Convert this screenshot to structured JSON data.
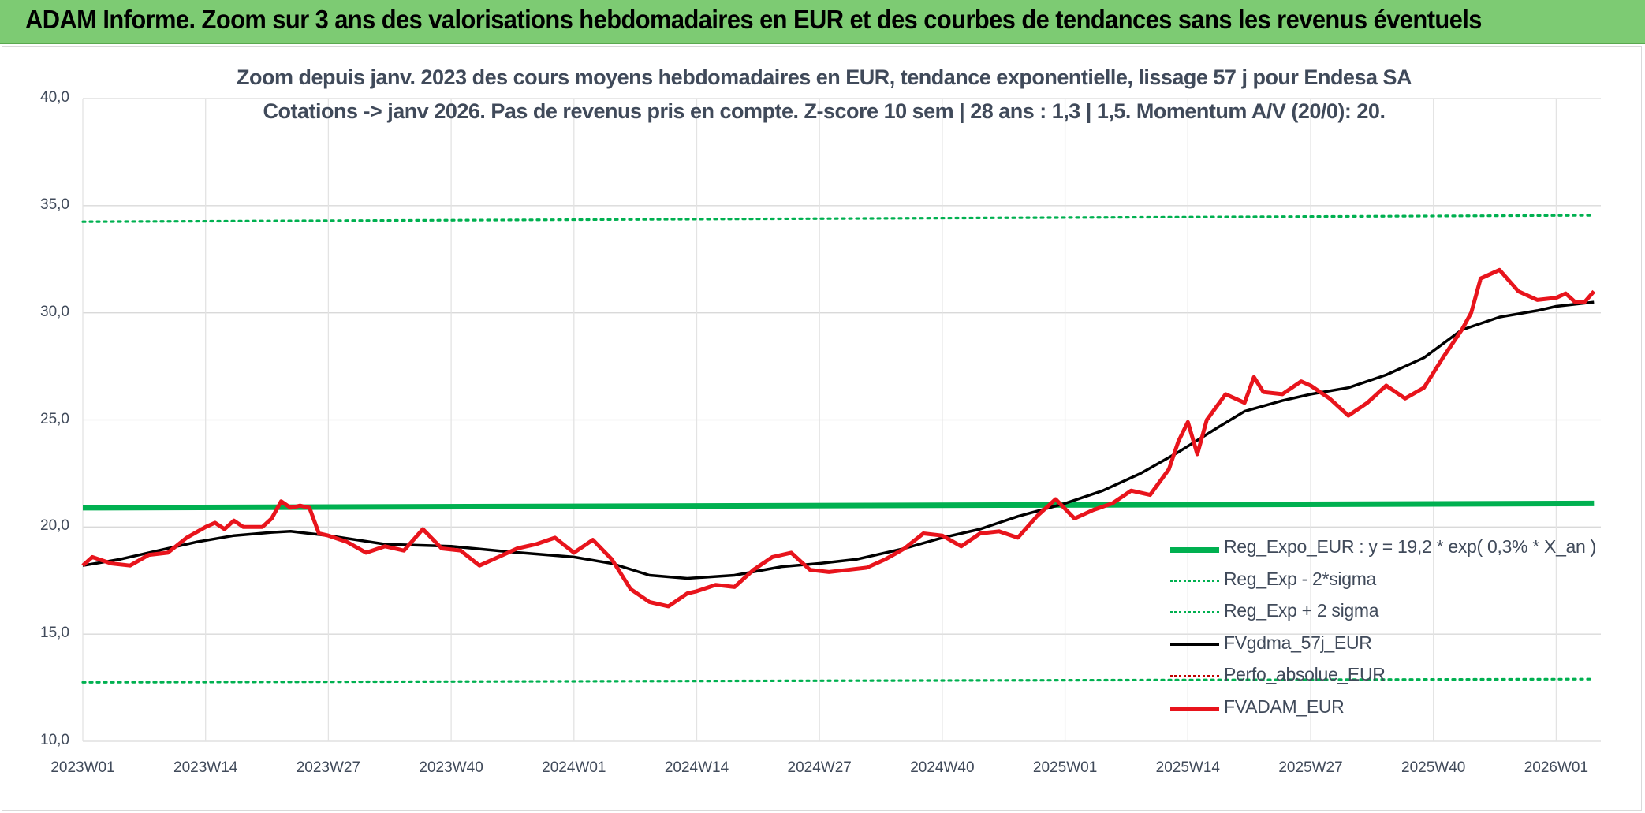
{
  "banner": {
    "title": "ADAM Informe. Zoom sur 3 ans des valorisations hebdomadaires en EUR et des courbes de tendances sans les revenus éventuels"
  },
  "chart_data": {
    "type": "line",
    "title": "Zoom depuis janv. 2023 des cours moyens hebdomadaires en EUR, tendance exponentielle, lissage 57 j pour Endesa SA",
    "subtitle": "Cotations -> janv 2026. Pas de revenus pris en compte. Z-score 10 sem | 28 ans : 1,3 | 1,5. Momentum A/V (20/0): 20.",
    "ylim": [
      10,
      40
    ],
    "yticks": [
      "10,0",
      "15,0",
      "20,0",
      "25,0",
      "30,0",
      "35,0",
      "40,0"
    ],
    "x_tick_labels": [
      "2023W01",
      "2023W14",
      "2023W27",
      "2023W40",
      "2024W01",
      "2024W14",
      "2024W27",
      "2024W40",
      "2025W01",
      "2025W14",
      "2025W27",
      "2025W40",
      "2026W01"
    ],
    "grid": true,
    "legend_position": "bottom-right",
    "series": [
      {
        "name": "Reg_Expo_EUR : y = 19,2 * exp( 0,3% *  X_an )",
        "color": "#00b050",
        "style": "solid-thick",
        "x": [
          "2023W01",
          "2026W05"
        ],
        "values": [
          20.9,
          21.1
        ]
      },
      {
        "name": "Reg_Exp - 2*sigma",
        "color": "#00b050",
        "style": "dotted",
        "x": [
          "2023W01",
          "2026W05"
        ],
        "values": [
          12.75,
          12.9
        ]
      },
      {
        "name": "Reg_Exp + 2 sigma",
        "color": "#00b050",
        "style": "dotted",
        "x": [
          "2023W01",
          "2026W05"
        ],
        "values": [
          34.25,
          34.55
        ]
      },
      {
        "name": "FVgdma_57j_EUR",
        "color": "#000000",
        "style": "solid",
        "x": [
          "2023W01",
          "2023W05",
          "2023W09",
          "2023W13",
          "2023W17",
          "2023W21",
          "2023W23",
          "2023W27",
          "2023W33",
          "2023W40",
          "2023W46",
          "2024W01",
          "2024W05",
          "2024W09",
          "2024W13",
          "2024W18",
          "2024W23",
          "2024W27",
          "2024W31",
          "2024W36",
          "2024W40",
          "2024W44",
          "2024W48",
          "2025W01",
          "2025W05",
          "2025W09",
          "2025W13",
          "2025W17",
          "2025W20",
          "2025W24",
          "2025W27",
          "2025W31",
          "2025W35",
          "2025W39",
          "2025W43",
          "2025W47",
          "2025W51",
          "2026W01",
          "2026W05"
        ],
        "values": [
          18.2,
          18.5,
          18.9,
          19.3,
          19.6,
          19.75,
          19.8,
          19.6,
          19.2,
          19.1,
          18.85,
          18.6,
          18.3,
          17.75,
          17.6,
          17.75,
          18.15,
          18.3,
          18.5,
          19.0,
          19.5,
          19.9,
          20.5,
          21.1,
          21.7,
          22.5,
          23.5,
          24.6,
          25.4,
          25.9,
          26.2,
          26.5,
          27.1,
          27.9,
          29.2,
          29.8,
          30.1,
          30.3,
          30.5
        ]
      },
      {
        "name": "Perfo_absolue_EUR",
        "color": "#c00000",
        "style": "dotted",
        "x": [],
        "values": []
      },
      {
        "name": "FVADAM_EUR",
        "color": "#e8141c",
        "style": "solid-thick",
        "x": [
          "2023W01",
          "2023W02",
          "2023W04",
          "2023W06",
          "2023W08",
          "2023W10",
          "2023W12",
          "2023W14",
          "2023W15",
          "2023W16",
          "2023W17",
          "2023W18",
          "2023W20",
          "2023W21",
          "2023W22",
          "2023W23",
          "2023W24",
          "2023W25",
          "2023W26",
          "2023W27",
          "2023W29",
          "2023W31",
          "2023W33",
          "2023W35",
          "2023W37",
          "2023W39",
          "2023W41",
          "2023W43",
          "2023W45",
          "2023W47",
          "2023W49",
          "2023W51",
          "2024W01",
          "2024W03",
          "2024W05",
          "2024W07",
          "2024W09",
          "2024W11",
          "2024W13",
          "2024W14",
          "2024W16",
          "2024W18",
          "2024W20",
          "2024W22",
          "2024W24",
          "2024W26",
          "2024W28",
          "2024W30",
          "2024W32",
          "2024W34",
          "2024W36",
          "2024W38",
          "2024W40",
          "2024W42",
          "2024W44",
          "2024W46",
          "2024W48",
          "2024W50",
          "2024W52",
          "2025W02",
          "2025W04",
          "2025W06",
          "2025W08",
          "2025W10",
          "2025W12",
          "2025W13",
          "2025W14",
          "2025W15",
          "2025W16",
          "2025W18",
          "2025W20",
          "2025W21",
          "2025W22",
          "2025W24",
          "2025W26",
          "2025W27",
          "2025W29",
          "2025W31",
          "2025W33",
          "2025W35",
          "2025W37",
          "2025W39",
          "2025W41",
          "2025W43",
          "2025W44",
          "2025W45",
          "2025W47",
          "2025W49",
          "2025W51",
          "2026W01",
          "2026W02",
          "2026W03",
          "2026W04",
          "2026W05"
        ],
        "values": [
          18.2,
          18.6,
          18.3,
          18.2,
          18.7,
          18.8,
          19.5,
          20.0,
          20.2,
          19.9,
          20.3,
          20.0,
          20.0,
          20.4,
          21.2,
          20.9,
          21.0,
          20.9,
          19.7,
          19.6,
          19.3,
          18.8,
          19.1,
          18.9,
          19.9,
          19.0,
          18.9,
          18.2,
          18.6,
          19.0,
          19.2,
          19.5,
          18.8,
          19.4,
          18.5,
          17.1,
          16.5,
          16.3,
          16.9,
          17.0,
          17.3,
          17.2,
          18.0,
          18.6,
          18.8,
          18.0,
          17.9,
          18.0,
          18.1,
          18.5,
          19.0,
          19.7,
          19.6,
          19.1,
          19.7,
          19.8,
          19.5,
          20.5,
          21.3,
          20.4,
          20.8,
          21.1,
          21.7,
          21.5,
          22.7,
          24.0,
          24.9,
          23.4,
          25.0,
          26.2,
          25.8,
          27.0,
          26.3,
          26.2,
          26.8,
          26.6,
          26.0,
          25.2,
          25.8,
          26.6,
          26.0,
          26.5,
          27.9,
          29.2,
          30.0,
          31.6,
          32.0,
          31.0,
          30.6,
          30.7,
          30.9,
          30.5,
          30.5,
          31.0
        ]
      }
    ]
  }
}
